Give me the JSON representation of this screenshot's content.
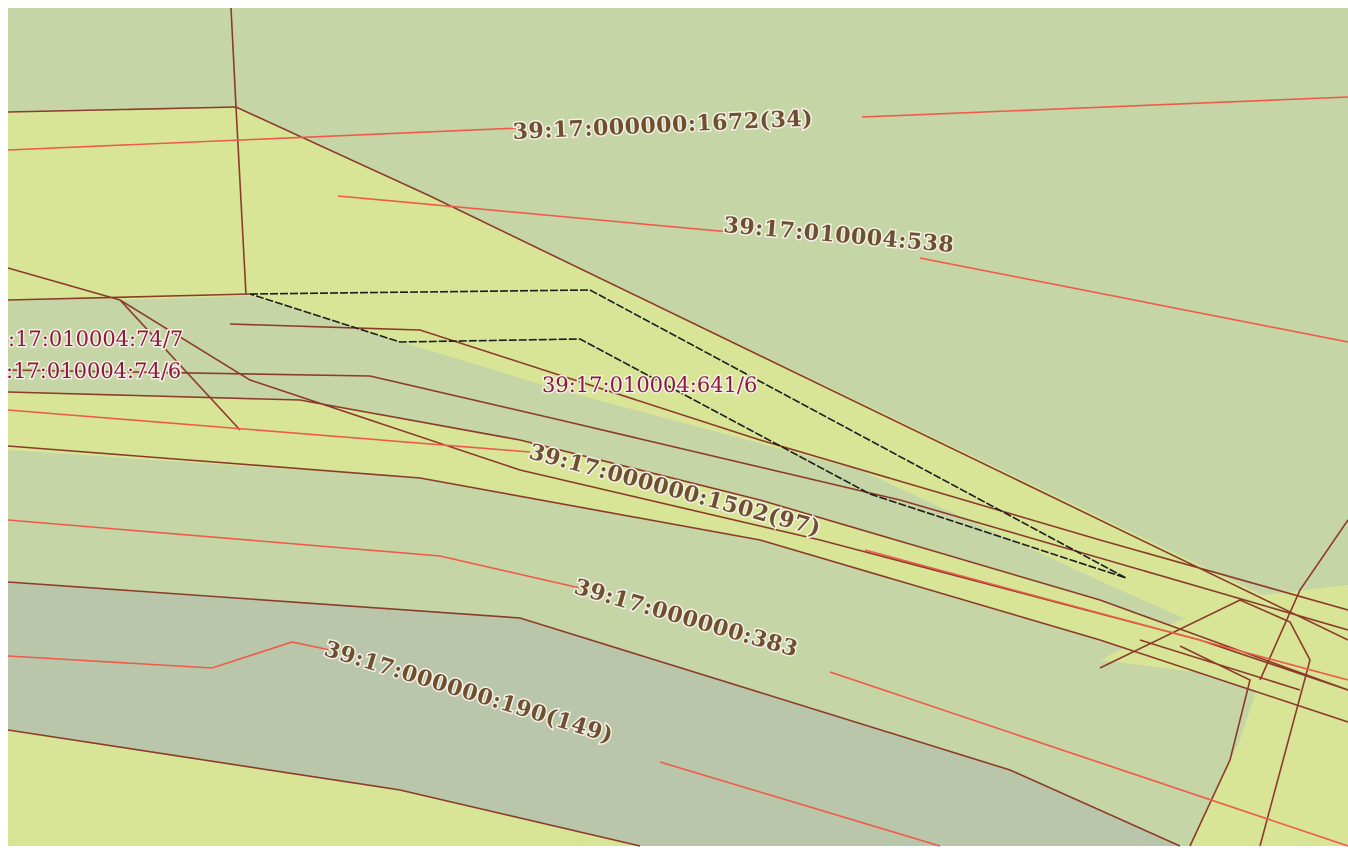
{
  "map": {
    "colors": {
      "background": "#c6d5a6",
      "zone_light": "#d8e597",
      "zone_grey": "#b9c6a9",
      "boundary": "#8b3b2a",
      "road": "#ef5a4a",
      "selected": "#1c1c1c"
    },
    "labels": {
      "parcel_1672": "39:17:000000:1672(34)",
      "parcel_538": "39:17:010004:538",
      "parcel_74_7": ":17:010004:74/7",
      "parcel_74_6": ":17:010004:74/6",
      "parcel_641_6": "39:17:010004:641/6",
      "parcel_1502": "39:17:000000:1502(97)",
      "parcel_383": "39:17:000000:383",
      "parcel_190": "39:17:000000:190(149)"
    }
  }
}
